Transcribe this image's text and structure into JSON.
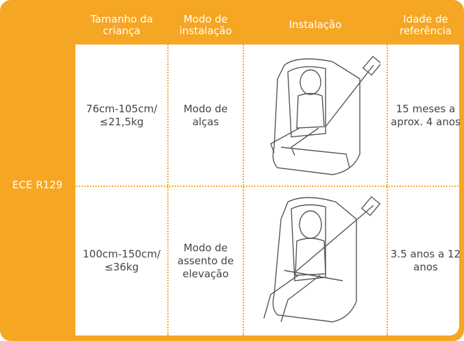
{
  "table": {
    "headers": [
      "Tamanho da criança",
      "Modo de instalação",
      "Instalação",
      "Idade de referência"
    ],
    "group_label": "ECE R129",
    "rows": [
      [
        "76cm-105cm/ ≤21,5kg",
        "Modo de alças",
        "15 meses a aprox. 4 anos"
      ],
      [
        "100cm-150cm/ ≤36kg",
        "Modo de assento de elevação",
        "3.5 anos a 12 anos"
      ]
    ]
  }
}
